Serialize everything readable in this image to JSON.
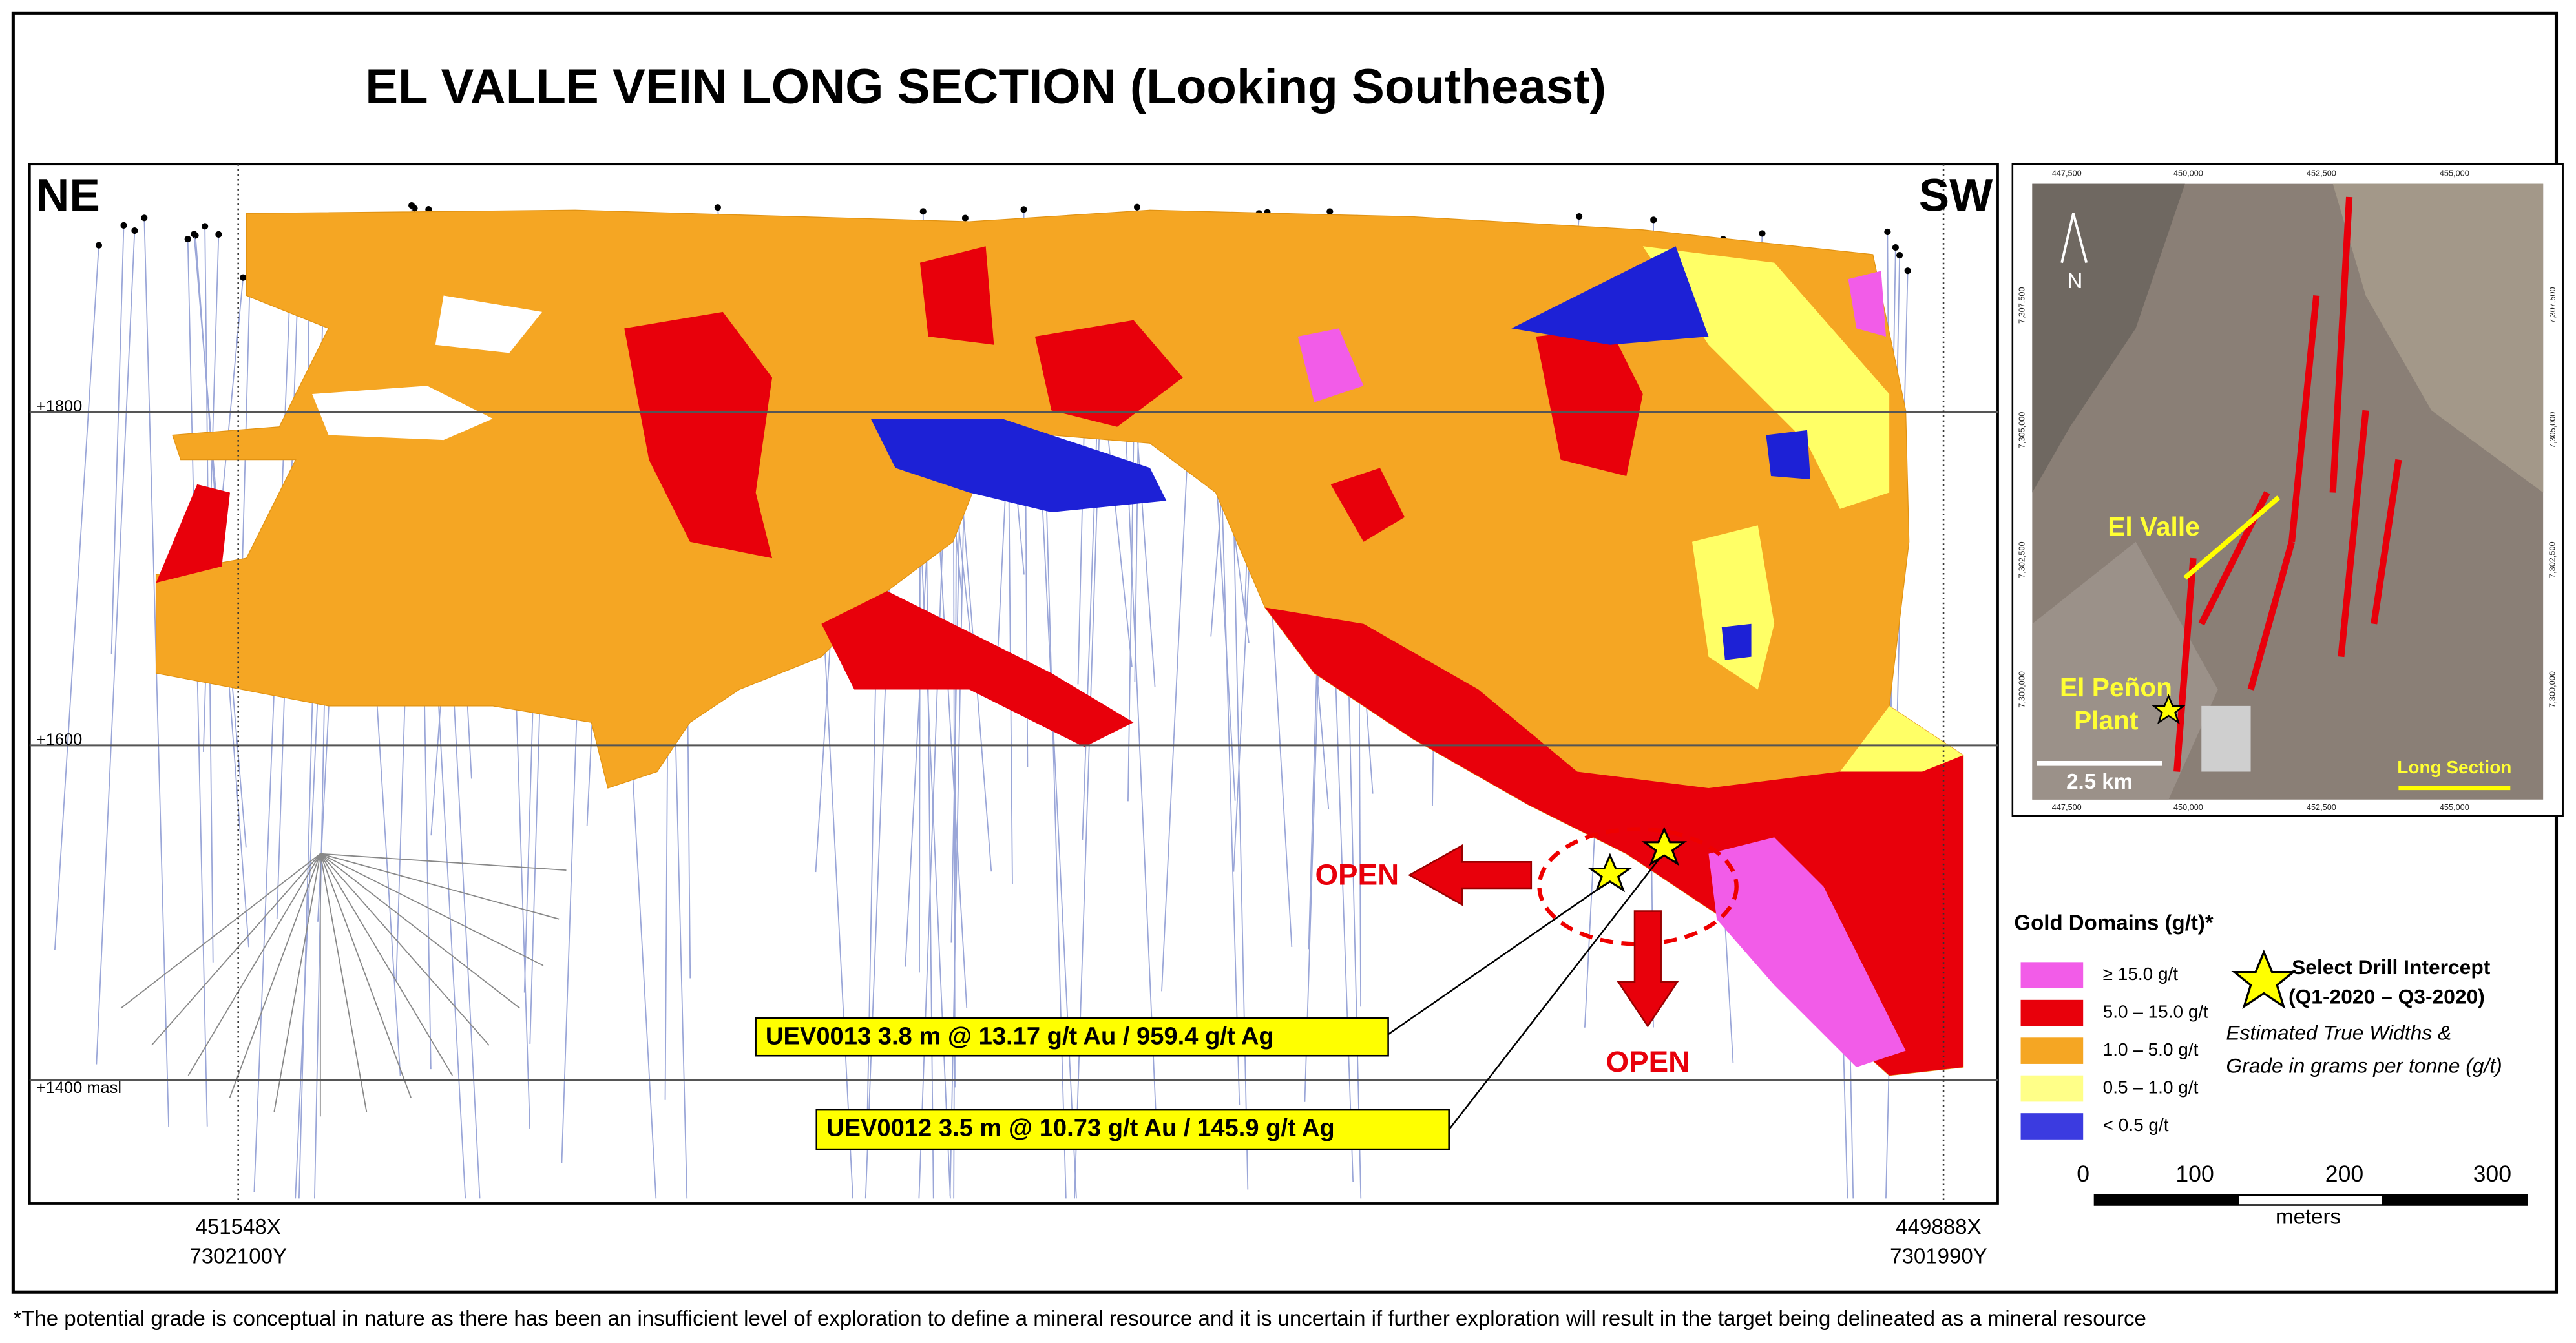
{
  "title": "EL VALLE VEIN LONG SECTION (Looking Southeast)",
  "section": {
    "left_label": "NE",
    "right_label": "SW",
    "elevations": [
      "+1800",
      "+1600",
      "+1400 masl"
    ],
    "left_coordinates": [
      "451548X",
      "7302100Y"
    ],
    "right_coordinates": [
      "449888X",
      "7301990Y"
    ],
    "open_labels": [
      "OPEN",
      "OPEN"
    ],
    "intercepts": [
      "UEV0013  3.8 m @ 13.17 g/t Au / 959.4 g/t Ag",
      "UEV0012  3.5 m @ 10.73 g/t Au / 145.9 g/t Ag"
    ]
  },
  "inset_map": {
    "x_ticks": [
      "447,500",
      "450,000",
      "452,500",
      "455,000"
    ],
    "y_ticks": [
      "7,307,500",
      "7,305,000",
      "7,302,500",
      "7,300,000"
    ],
    "north": "N",
    "vein_label": "El Valle",
    "plant_label": [
      "El Peñon",
      "Plant"
    ],
    "scale": "2.5 km",
    "section_key": "Long Section"
  },
  "legend": {
    "title": "Gold Domains (g/t)*",
    "items": [
      "≥ 15.0 g/t",
      "5.0 – 15.0 g/t",
      "1.0 – 5.0 g/t",
      "0.5 – 1.0 g/t",
      "< 0.5 g/t"
    ],
    "intercept_title": [
      "Select Drill Intercept",
      "(Q1-2020 – Q3-2020)"
    ],
    "intercept_note": [
      "Estimated True Widths &",
      "Grade in grams per tonne (g/t)"
    ]
  },
  "scale_bar": {
    "labels": [
      "0",
      "100",
      "200",
      "300"
    ],
    "unit": "meters"
  },
  "footnote": "*The potential grade is conceptual in nature as there has been an insufficient level of exploration to define a mineral resource and it is uncertain if further exploration will result in the target being delineated as a mineral resource"
}
